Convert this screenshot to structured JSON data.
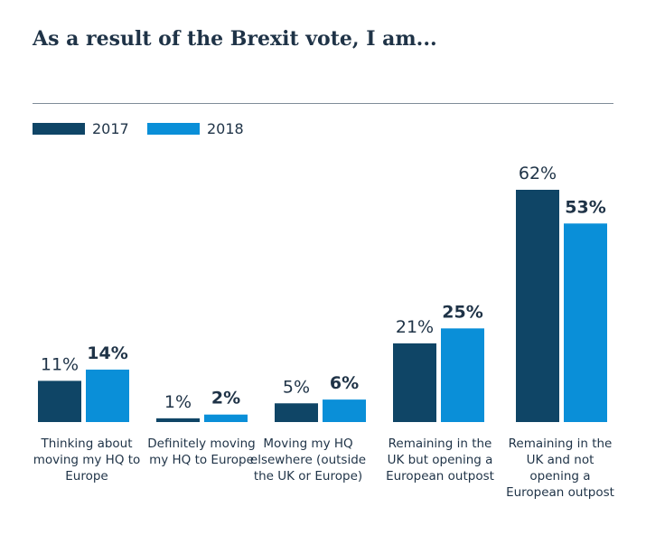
{
  "chart_data": {
    "type": "bar",
    "title": "As a result of the Brexit vote, I am...",
    "categories": [
      "Thinking about moving my HQ to Europe",
      "Definitely moving my HQ to Europe",
      "Moving my HQ elsewhere (outside the UK or Europe)",
      "Remaining in the UK but opening a European outpost",
      "Remaining in the UK and not opening a European outpost"
    ],
    "series": [
      {
        "name": "2017",
        "values": [
          11,
          1,
          5,
          21,
          62
        ],
        "labels": [
          "11%",
          "1%",
          "5%",
          "21%",
          "62%"
        ],
        "color": "#0f4566"
      },
      {
        "name": "2018",
        "values": [
          14,
          2,
          6,
          25,
          53
        ],
        "labels": [
          "14%",
          "2%",
          "6%",
          "25%",
          "53%"
        ],
        "color": "#0a8fd8"
      }
    ],
    "ylim": [
      0,
      62
    ],
    "grid": false,
    "legend": "top-left"
  }
}
